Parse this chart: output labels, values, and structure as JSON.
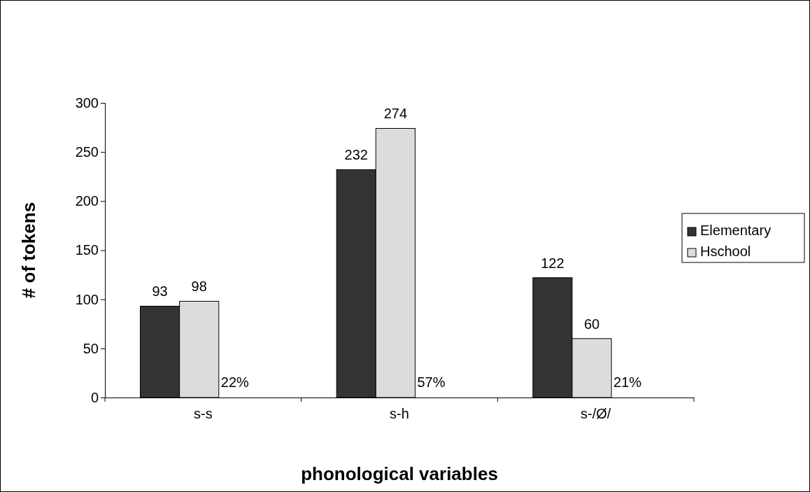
{
  "chart_data": {
    "type": "bar",
    "xlabel": "phonological variables",
    "ylabel": "# of tokens",
    "categories": [
      "s-s",
      "s-h",
      "s-/Ø/"
    ],
    "series": [
      {
        "name": "Elementary",
        "color": "#333333",
        "values": [
          93,
          232,
          122
        ]
      },
      {
        "name": "Hschool",
        "color": "#dcdcdc",
        "values": [
          98,
          274,
          60
        ]
      }
    ],
    "ylim": [
      0,
      300
    ],
    "yticks": [
      0,
      50,
      100,
      150,
      200,
      250,
      300
    ],
    "data_labels": true,
    "legend": "right",
    "grid": false,
    "annotations": [
      "22%",
      "57%",
      "21%"
    ]
  }
}
